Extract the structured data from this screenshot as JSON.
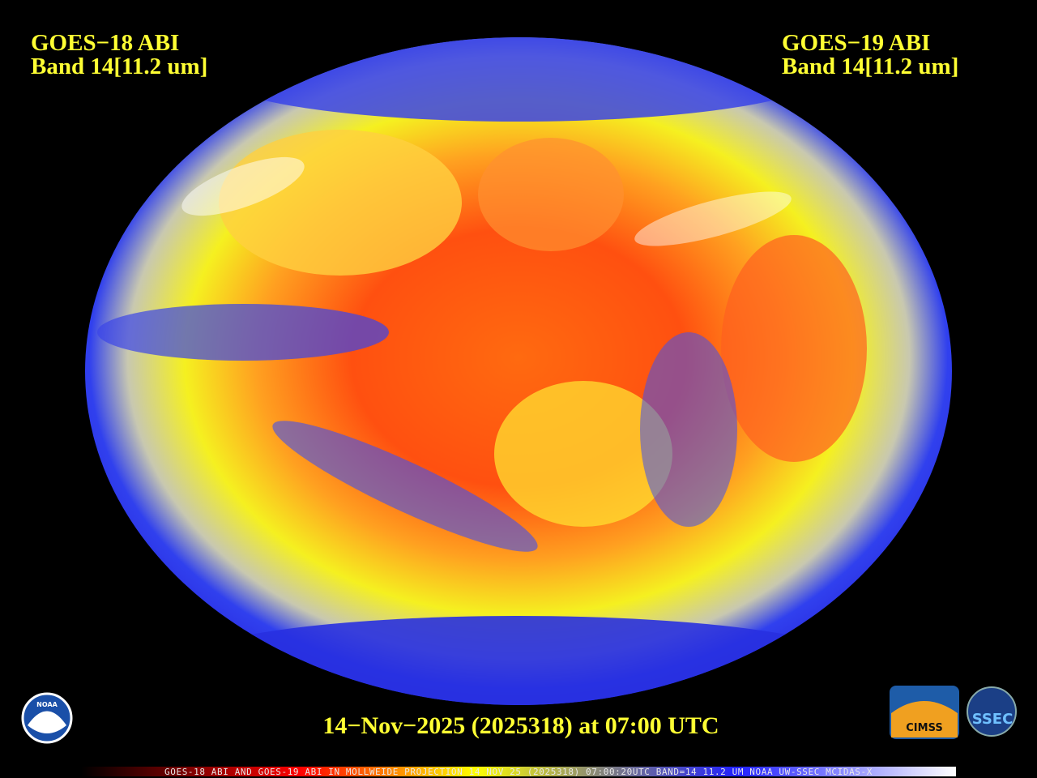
{
  "header": {
    "left": {
      "line1": "GOES−18 ABI",
      "line2": "Band 14[11.2 um]"
    },
    "right": {
      "line1": "GOES−19 ABI",
      "line2": "Band 14[11.2 um]"
    }
  },
  "timestamp": "14−Nov−2025 (2025318) at 07:00 UTC",
  "footer": "GOES-18 ABI AND GOES-19 ABI IN MOLLWEIDE PROJECTION 14 NOV 25 (2025318) 07:00:20UTC BAND=14 11.2 UM NOAA UW-SSEC MCIDAS-X",
  "logos": {
    "noaa": "NOAA",
    "cimss": "CIMSS",
    "ssec": "SSEC"
  }
}
